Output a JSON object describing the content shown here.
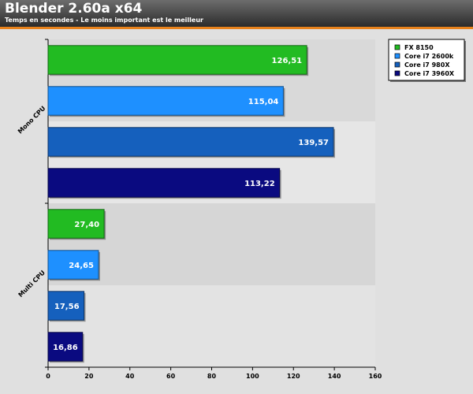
{
  "chart_data": {
    "type": "bar",
    "orientation": "horizontal",
    "title": "Blender 2.60a x64",
    "subtitle": "Temps en secondes - Le moins important est le meilleur",
    "categories": [
      "Mono CPU",
      "Multi CPU"
    ],
    "series": [
      {
        "name": "FX 8150",
        "color": "#22bb22",
        "values": [
          126.51,
          27.4
        ],
        "labels": [
          "126,51",
          "27,40"
        ]
      },
      {
        "name": "Core i7 2600k",
        "color": "#1e90ff",
        "values": [
          115.04,
          24.65
        ],
        "labels": [
          "115,04",
          "24,65"
        ]
      },
      {
        "name": "Core i7 980X",
        "color": "#1560bd",
        "values": [
          139.57,
          17.56
        ],
        "labels": [
          "139,57",
          "17,56"
        ]
      },
      {
        "name": "Core i7 3960X",
        "color": "#0a0a80",
        "values": [
          113.22,
          16.86
        ],
        "labels": [
          "113,22",
          "16,86"
        ]
      }
    ],
    "xlim": [
      0,
      160
    ],
    "xticks": [
      0,
      20,
      40,
      60,
      80,
      100,
      120,
      140,
      160
    ],
    "xlabel": "",
    "ylabel": "",
    "legend_position": "top-right",
    "accent_color": "#e8821c"
  }
}
